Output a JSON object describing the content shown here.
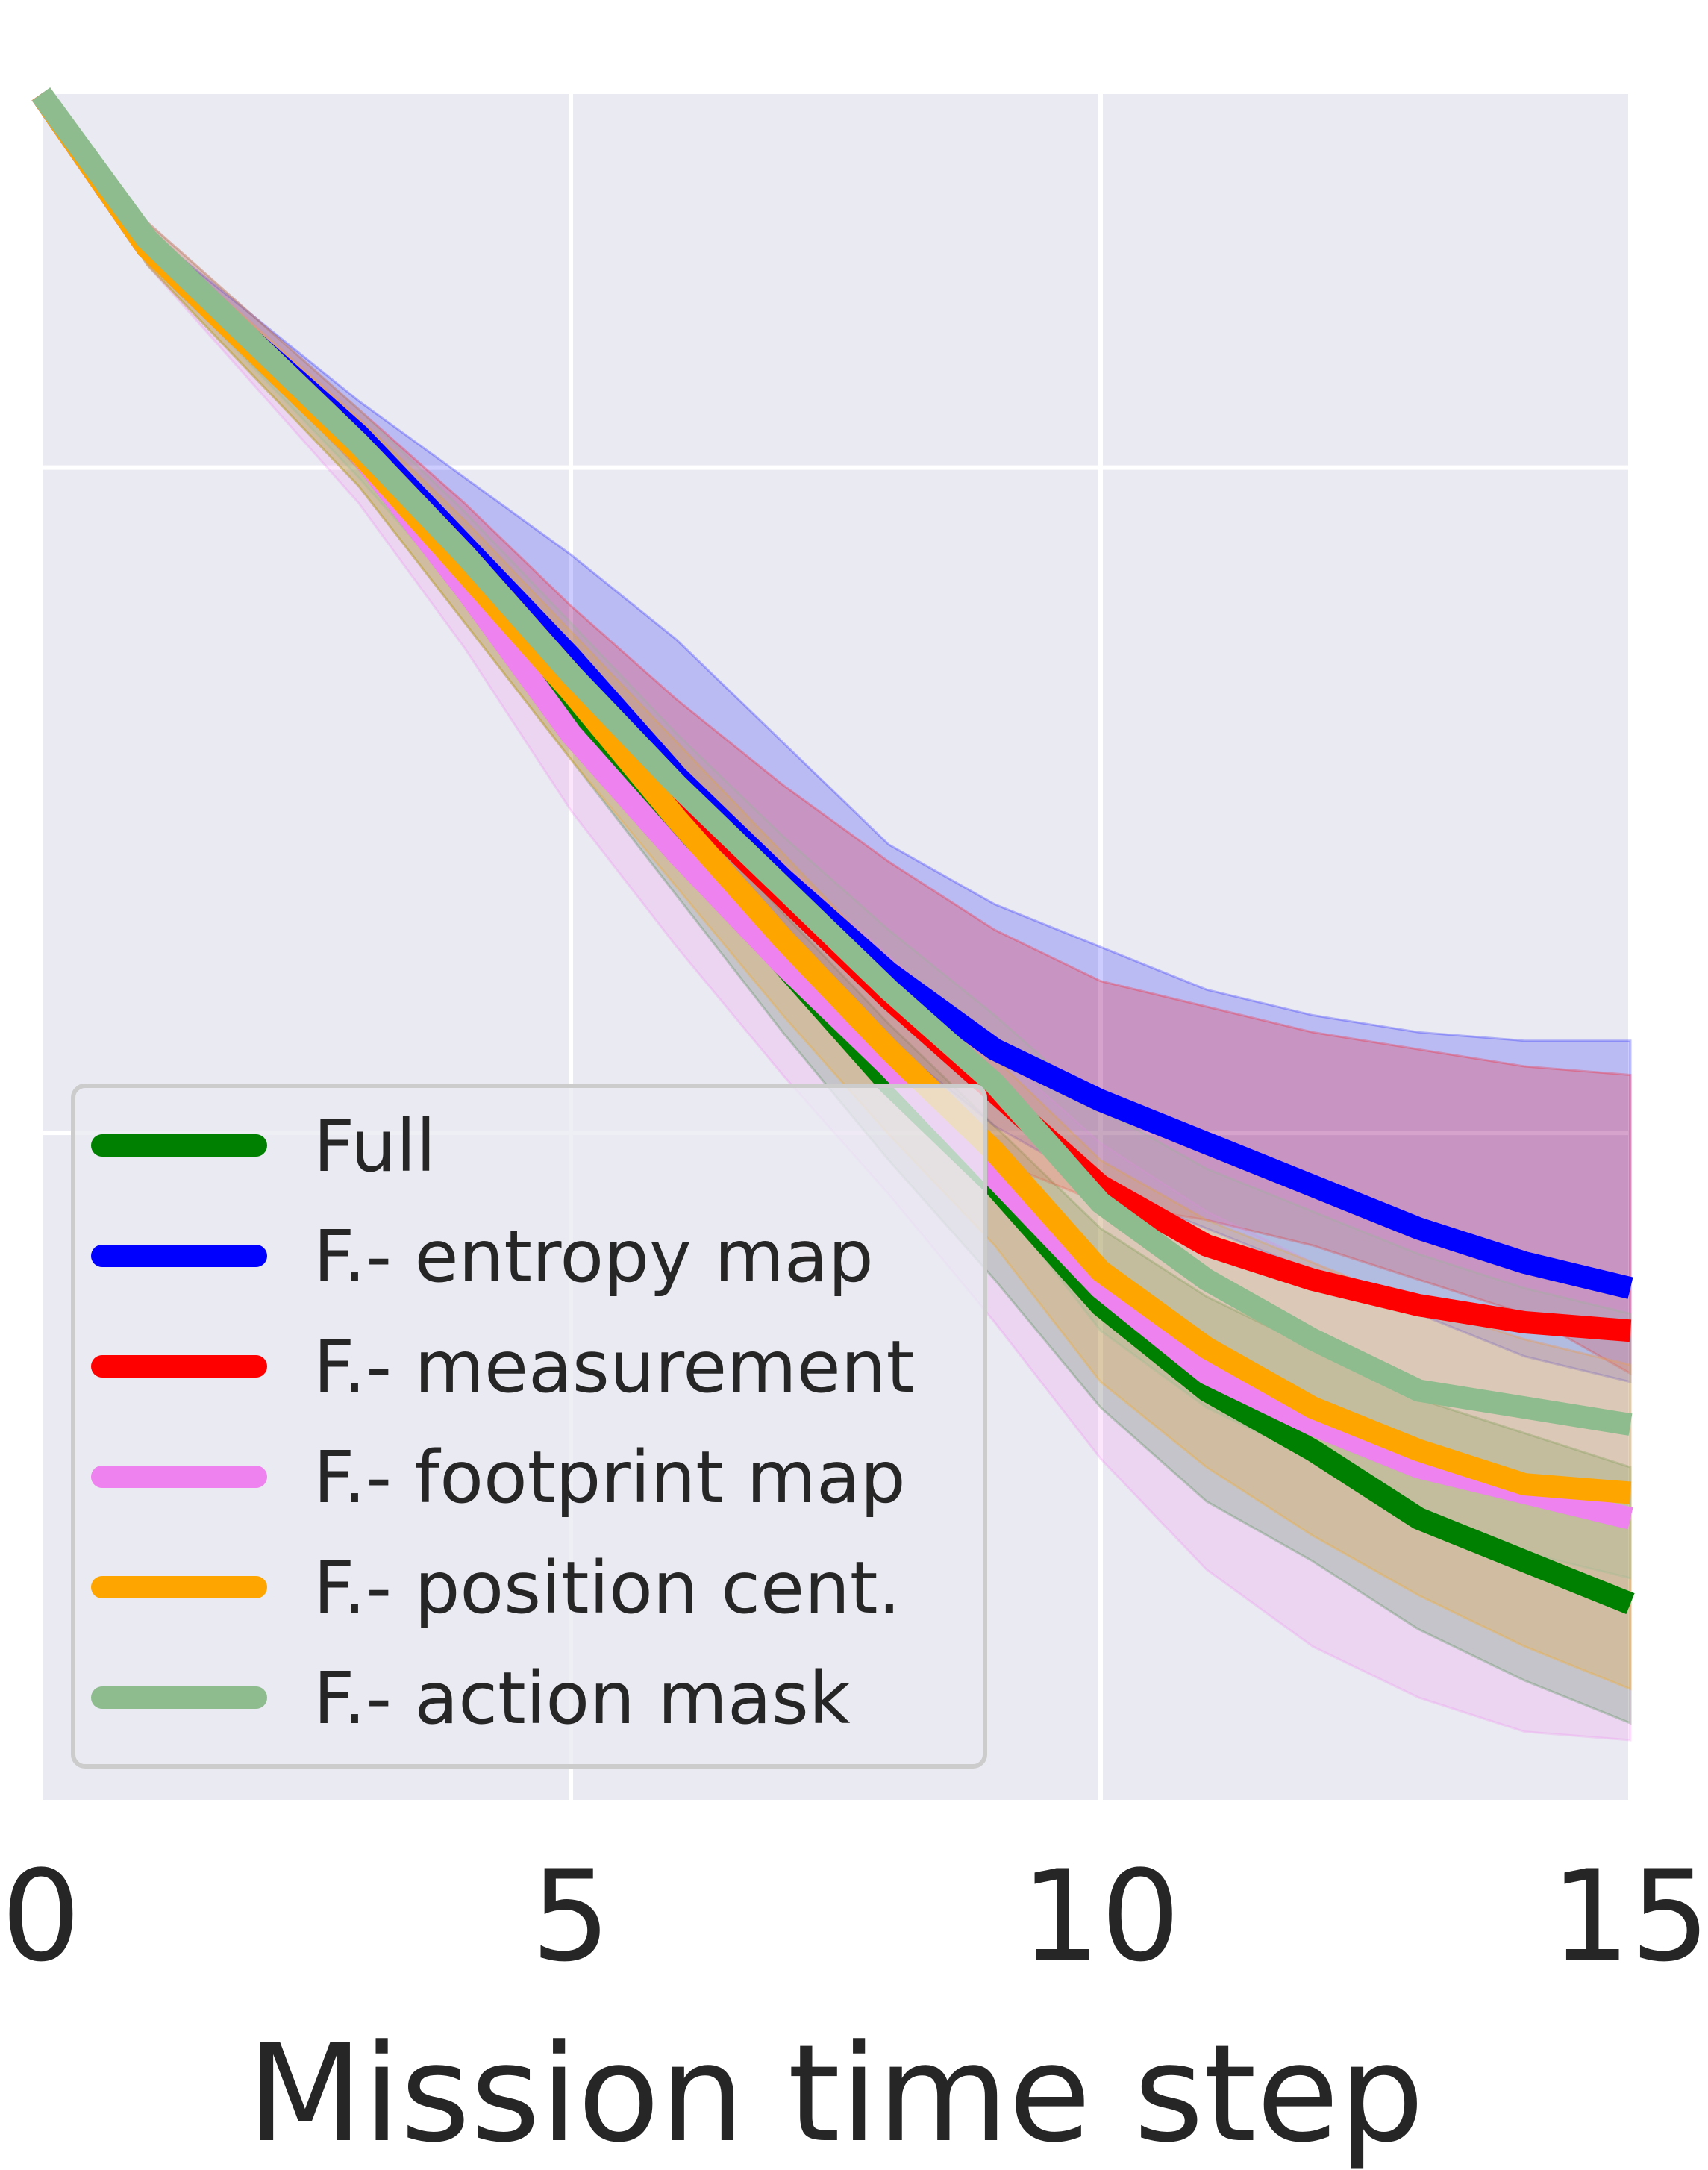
{
  "chart_data": {
    "type": "line",
    "title": "",
    "xlabel": "Mission time step",
    "ylabel": "",
    "xlim": [
      0,
      15
    ],
    "ylim": [
      0,
      1
    ],
    "x_ticks": [
      0,
      5,
      10,
      15
    ],
    "x_tick_labels": [
      "0",
      "5",
      "10",
      "15"
    ],
    "y_grid_values": [
      0.391,
      0.781
    ],
    "grid": true,
    "legend_position": "lower-left",
    "x": [
      0,
      1,
      2,
      3,
      4,
      5,
      6,
      7,
      8,
      9,
      10,
      11,
      12,
      13,
      14,
      15
    ],
    "series": [
      {
        "name": "Full",
        "color": "#008000",
        "values": [
          1.0,
          0.91,
          0.85,
          0.79,
          0.715,
          0.64,
          0.565,
          0.49,
          0.42,
          0.36,
          0.29,
          0.24,
          0.205,
          0.165,
          0.14,
          0.115
        ],
        "lower": [
          1.0,
          0.9,
          0.835,
          0.77,
          0.69,
          0.61,
          0.53,
          0.45,
          0.375,
          0.305,
          0.23,
          0.175,
          0.14,
          0.1,
          0.07,
          0.045
        ],
        "upper": [
          1.0,
          0.92,
          0.86,
          0.805,
          0.735,
          0.665,
          0.59,
          0.52,
          0.455,
          0.395,
          0.335,
          0.295,
          0.265,
          0.235,
          0.215,
          0.195
        ]
      },
      {
        "name": "F.- entropy map",
        "color": "#0000ff",
        "values": [
          1.0,
          0.91,
          0.855,
          0.8,
          0.735,
          0.67,
          0.6,
          0.54,
          0.485,
          0.44,
          0.41,
          0.385,
          0.36,
          0.335,
          0.315,
          0.3
        ],
        "lower": [
          1.0,
          0.905,
          0.845,
          0.785,
          0.715,
          0.645,
          0.575,
          0.505,
          0.445,
          0.395,
          0.36,
          0.335,
          0.31,
          0.285,
          0.26,
          0.245
        ],
        "upper": [
          1.0,
          0.92,
          0.87,
          0.82,
          0.775,
          0.73,
          0.68,
          0.62,
          0.56,
          0.525,
          0.5,
          0.475,
          0.46,
          0.45,
          0.445,
          0.445
        ]
      },
      {
        "name": "F.- measurement",
        "color": "#ff0000",
        "values": [
          1.0,
          0.91,
          0.855,
          0.795,
          0.73,
          0.66,
          0.59,
          0.53,
          0.47,
          0.415,
          0.36,
          0.325,
          0.305,
          0.29,
          0.28,
          0.275
        ],
        "lower": [
          1.0,
          0.905,
          0.845,
          0.78,
          0.71,
          0.635,
          0.56,
          0.49,
          0.43,
          0.375,
          0.35,
          0.34,
          0.325,
          0.305,
          0.285,
          0.25
        ],
        "upper": [
          1.0,
          0.925,
          0.87,
          0.815,
          0.76,
          0.7,
          0.645,
          0.595,
          0.55,
          0.51,
          0.48,
          0.465,
          0.45,
          0.44,
          0.43,
          0.425
        ]
      },
      {
        "name": "F.- footprint map",
        "color": "#ee82ee",
        "values": [
          1.0,
          0.91,
          0.85,
          0.79,
          0.71,
          0.625,
          0.555,
          0.49,
          0.43,
          0.365,
          0.3,
          0.25,
          0.22,
          0.195,
          0.18,
          0.165
        ],
        "lower": [
          1.0,
          0.9,
          0.83,
          0.76,
          0.675,
          0.58,
          0.5,
          0.425,
          0.355,
          0.28,
          0.2,
          0.135,
          0.09,
          0.06,
          0.04,
          0.035
        ],
        "upper": [
          1.0,
          0.92,
          0.865,
          0.81,
          0.74,
          0.67,
          0.605,
          0.55,
          0.495,
          0.44,
          0.385,
          0.345,
          0.315,
          0.29,
          0.27,
          0.255
        ]
      },
      {
        "name": "F.- position cent.",
        "color": "#ffa500",
        "values": [
          1.0,
          0.91,
          0.85,
          0.79,
          0.72,
          0.65,
          0.575,
          0.505,
          0.44,
          0.38,
          0.31,
          0.265,
          0.23,
          0.205,
          0.185,
          0.18
        ],
        "lower": [
          1.0,
          0.9,
          0.835,
          0.77,
          0.69,
          0.61,
          0.535,
          0.46,
          0.39,
          0.325,
          0.245,
          0.195,
          0.155,
          0.12,
          0.09,
          0.065
        ],
        "upper": [
          1.0,
          0.92,
          0.865,
          0.81,
          0.75,
          0.685,
          0.62,
          0.555,
          0.49,
          0.435,
          0.375,
          0.34,
          0.315,
          0.29,
          0.27,
          0.255
        ]
      },
      {
        "name": "F.- action mask",
        "color": "#8fbc8f",
        "values": [
          1.0,
          0.915,
          0.855,
          0.795,
          0.73,
          0.66,
          0.595,
          0.535,
          0.475,
          0.42,
          0.35,
          0.305,
          0.27,
          0.24,
          0.23,
          0.22
        ],
        "lower": [
          1.0,
          0.905,
          0.84,
          0.775,
          0.705,
          0.635,
          0.56,
          0.49,
          0.425,
          0.355,
          0.275,
          0.23,
          0.2,
          0.165,
          0.145,
          0.13
        ],
        "upper": [
          1.0,
          0.925,
          0.87,
          0.815,
          0.755,
          0.69,
          0.625,
          0.565,
          0.51,
          0.46,
          0.405,
          0.37,
          0.345,
          0.32,
          0.3,
          0.285
        ]
      }
    ]
  }
}
